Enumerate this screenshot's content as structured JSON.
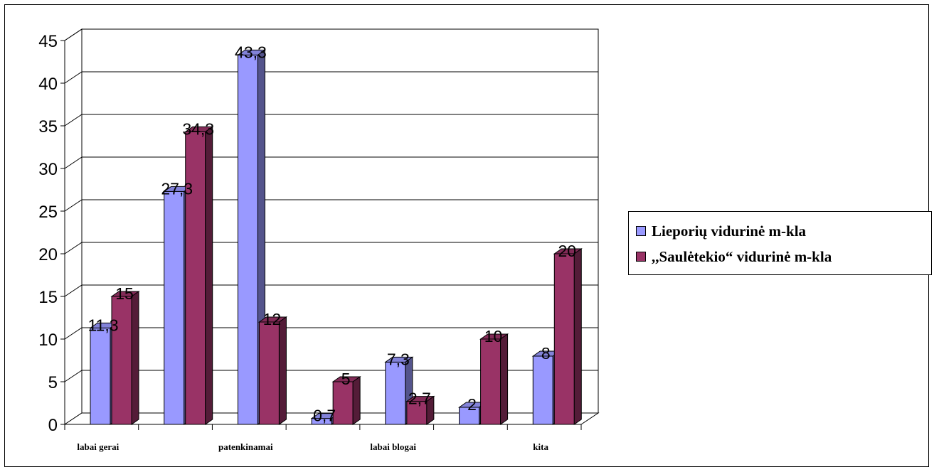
{
  "chart_data": {
    "type": "bar",
    "categories": [
      "labai gerai",
      "",
      "patenkinamai",
      "",
      "labai blogai",
      "",
      "kita"
    ],
    "series": [
      {
        "name": "Lieporių vidurinė m-kla",
        "values": [
          11.3,
          27.3,
          43.3,
          0.7,
          7.3,
          2,
          8
        ],
        "labels": [
          "11,3",
          "27,3",
          "43,3",
          "0,7",
          "7,3",
          "2",
          "8"
        ],
        "color": "#9999FF"
      },
      {
        "name": ",,Saulėtekio“  vidurinė m-kla",
        "values": [
          15,
          34.3,
          12,
          5,
          2.7,
          10,
          20
        ],
        "labels": [
          "15",
          "34,3",
          "12",
          "5",
          "2,7",
          "10",
          "20"
        ],
        "color": "#993366"
      }
    ],
    "title": "",
    "xlabel": "",
    "ylabel": "",
    "ylim": [
      0,
      45
    ],
    "yticks": [
      "0",
      "5",
      "10",
      "15",
      "20",
      "25",
      "30",
      "35",
      "40",
      "45"
    ],
    "grid": true,
    "legend_position": "right",
    "style": "3d-clustered-column"
  }
}
